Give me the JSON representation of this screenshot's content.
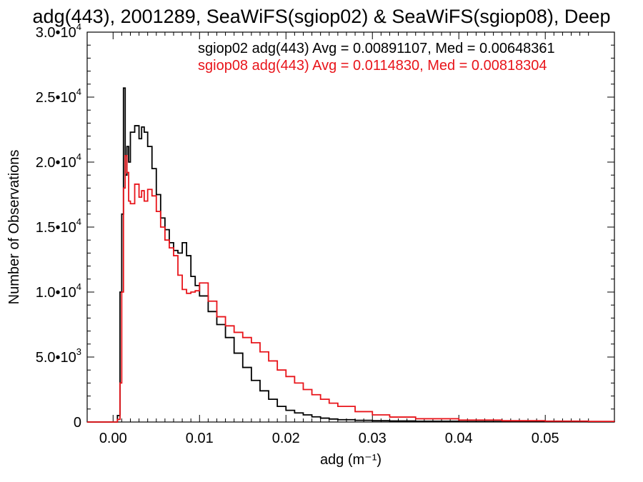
{
  "chart_data": {
    "type": "line",
    "title": "adg(443), 2001289, SeaWiFS(sgiop02) & SeaWiFS(sgiop08), Deep",
    "xlabel": "adg (m⁻¹)",
    "ylabel": "Number of Observations",
    "xlim": [
      -0.003,
      0.058
    ],
    "ylim": [
      0,
      30000
    ],
    "grid": false,
    "legend_position": "top-right",
    "x_ticks": [
      {
        "value": 0.0,
        "label": "0.00"
      },
      {
        "value": 0.01,
        "label": "0.01"
      },
      {
        "value": 0.02,
        "label": "0.02"
      },
      {
        "value": 0.03,
        "label": "0.03"
      },
      {
        "value": 0.04,
        "label": "0.04"
      },
      {
        "value": 0.05,
        "label": "0.05"
      }
    ],
    "y_ticks": [
      {
        "value": 0,
        "label": "0",
        "mant": "0",
        "exp": ""
      },
      {
        "value": 5000,
        "label": "5.0•10³",
        "mant": "5.0•10",
        "exp": "3"
      },
      {
        "value": 10000,
        "label": "1.0•10⁴",
        "mant": "1.0•10",
        "exp": "4"
      },
      {
        "value": 15000,
        "label": "1.5•10⁴",
        "mant": "1.5•10",
        "exp": "4"
      },
      {
        "value": 20000,
        "label": "2.0•10⁴",
        "mant": "2.0•10",
        "exp": "4"
      },
      {
        "value": 25000,
        "label": "2.5•10⁴",
        "mant": "2.5•10",
        "exp": "4"
      },
      {
        "value": 30000,
        "label": "3.0•10⁴",
        "mant": "3.0•10",
        "exp": "4"
      }
    ],
    "series": [
      {
        "name": "sgiop02 adg(443) Avg = 0.00891107, Med = 0.00648361",
        "color": "#000000",
        "x": [
          -0.003,
          0.0,
          0.0005,
          0.0008,
          0.001,
          0.0012,
          0.0014,
          0.0016,
          0.0018,
          0.002,
          0.0025,
          0.003,
          0.0033,
          0.0036,
          0.004,
          0.0045,
          0.005,
          0.0055,
          0.006,
          0.0065,
          0.007,
          0.0075,
          0.008,
          0.0085,
          0.009,
          0.0095,
          0.01,
          0.011,
          0.012,
          0.013,
          0.014,
          0.015,
          0.016,
          0.017,
          0.018,
          0.019,
          0.02,
          0.021,
          0.022,
          0.023,
          0.024,
          0.025,
          0.026,
          0.028,
          0.03,
          0.032,
          0.035,
          0.04,
          0.045,
          0.05,
          0.055,
          0.058
        ],
        "values": [
          0,
          0,
          500,
          10000,
          16000,
          25700,
          19000,
          21200,
          20000,
          22300,
          22800,
          21800,
          22700,
          22300,
          21200,
          19500,
          17500,
          15700,
          14800,
          13800,
          13200,
          13000,
          13800,
          12800,
          11200,
          10500,
          9700,
          8500,
          7500,
          6500,
          5300,
          4200,
          3200,
          2400,
          1750,
          1200,
          900,
          700,
          550,
          400,
          300,
          230,
          180,
          130,
          100,
          80,
          60,
          40,
          30,
          20,
          15,
          10
        ]
      },
      {
        "name": "sgiop08 adg(443) Avg = 0.0114830, Med = 0.00818304",
        "color": "#e8141a",
        "x": [
          -0.003,
          0.0,
          0.0005,
          0.0008,
          0.001,
          0.0012,
          0.0014,
          0.0016,
          0.0018,
          0.002,
          0.0025,
          0.003,
          0.0033,
          0.0036,
          0.004,
          0.0045,
          0.005,
          0.0055,
          0.006,
          0.0065,
          0.007,
          0.0075,
          0.008,
          0.0085,
          0.009,
          0.0095,
          0.01,
          0.011,
          0.012,
          0.013,
          0.014,
          0.015,
          0.016,
          0.017,
          0.018,
          0.019,
          0.02,
          0.021,
          0.022,
          0.023,
          0.024,
          0.025,
          0.026,
          0.028,
          0.03,
          0.032,
          0.035,
          0.04,
          0.045,
          0.05,
          0.055,
          0.058
        ],
        "values": [
          0,
          0,
          200,
          3000,
          10000,
          18000,
          20500,
          19200,
          17000,
          16800,
          18300,
          17300,
          17800,
          17000,
          17900,
          17400,
          16200,
          15000,
          14000,
          13400,
          12800,
          11300,
          10200,
          9900,
          10000,
          10100,
          10700,
          9300,
          8100,
          7400,
          6900,
          6500,
          6100,
          5400,
          4700,
          4000,
          3500,
          3000,
          2500,
          2100,
          1750,
          1450,
          1200,
          800,
          550,
          380,
          250,
          150,
          100,
          70,
          50,
          40
        ]
      }
    ]
  }
}
